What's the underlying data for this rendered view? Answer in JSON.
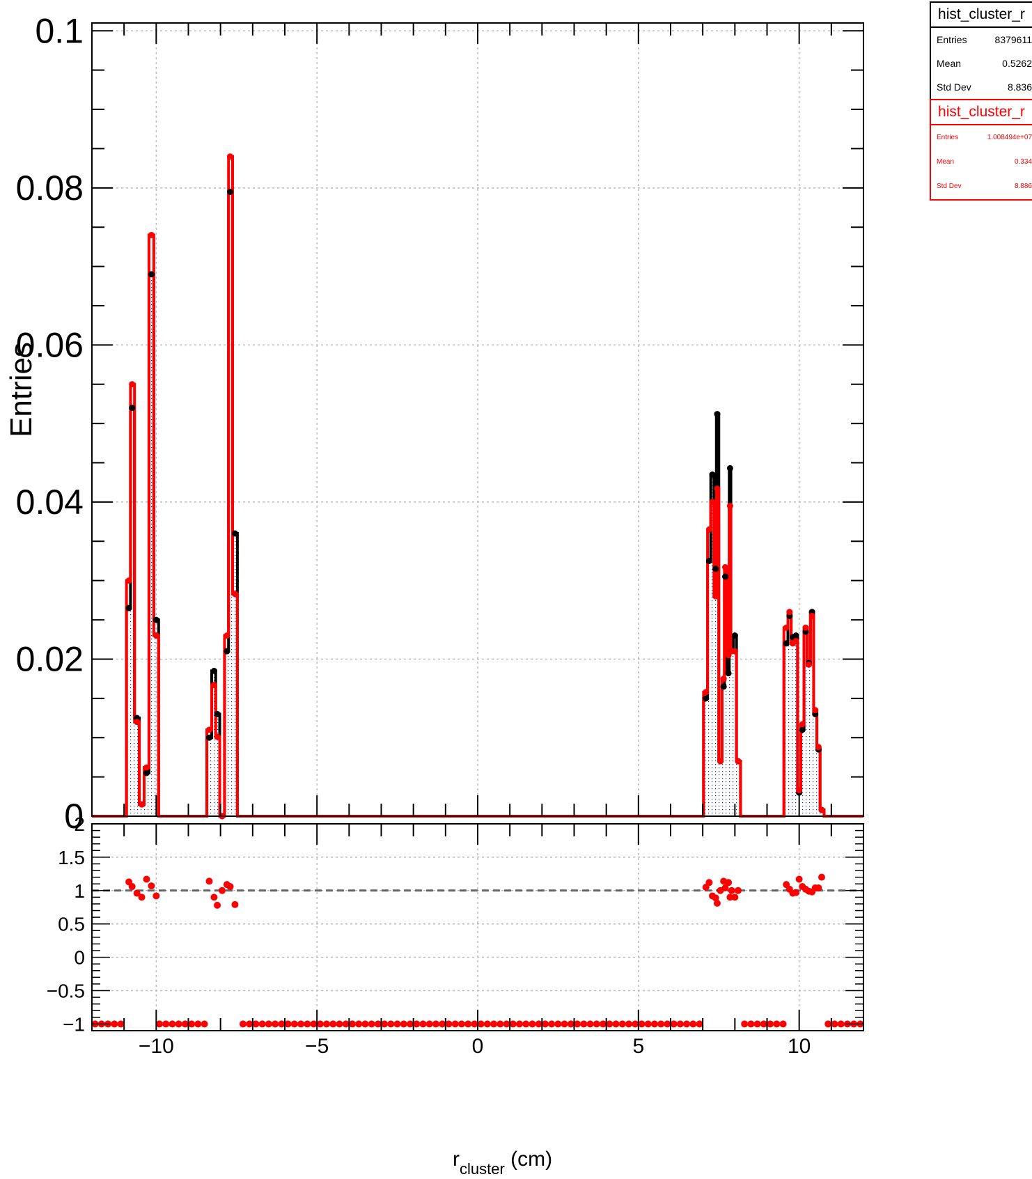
{
  "stats_boxes": [
    {
      "name": "hist_cluster_r",
      "entries_label": "Entries",
      "entries": "8379611",
      "mean_label": "Mean",
      "mean": "0.5262",
      "stddev_label": "Std Dev",
      "stddev": "8.836",
      "color": "#000000"
    },
    {
      "name": "hist_cluster_r",
      "entries_label": "Entries",
      "entries": "1.008494e+07",
      "mean_label": "Mean",
      "mean": "0.334",
      "stddev_label": "Std Dev",
      "stddev": "8.886",
      "color": "#ff0000"
    }
  ],
  "chart_data": [
    {
      "type": "line",
      "ylabel": "Entries",
      "xlim": [
        -12,
        12
      ],
      "ylim": [
        0,
        0.101
      ],
      "y_ticks": [
        "0",
        "0.02",
        "0.04",
        "0.06",
        "0.08",
        "0.1"
      ],
      "grid": true,
      "series": [
        {
          "name": "hist_cluster_r",
          "color": "#000000",
          "style": "step-filled-dotted",
          "x": [
            -10.85,
            -10.75,
            -10.6,
            -10.45,
            -10.3,
            -10.15,
            -10.0,
            -8.35,
            -8.2,
            -8.1,
            -7.95,
            -7.8,
            -7.7,
            -7.55,
            7.1,
            7.2,
            7.3,
            7.4,
            7.45,
            7.55,
            7.65,
            7.7,
            7.8,
            7.85,
            7.9,
            8.0,
            8.1,
            9.6,
            9.7,
            9.8,
            9.9,
            10.0,
            10.1,
            10.2,
            10.3,
            10.4,
            10.5,
            10.6,
            10.7
          ],
          "y": [
            0.0265,
            0.052,
            0.0125,
            0.0015,
            0.0055,
            0.069,
            0.025,
            0.01,
            0.0185,
            0.013,
            0.0,
            0.021,
            0.0795,
            0.036,
            0.015,
            0.0325,
            0.0435,
            0.0315,
            0.0512,
            0.007,
            0.0165,
            0.0305,
            0.0182,
            0.0443,
            0.021,
            0.023,
            0.007,
            0.022,
            0.0255,
            0.0228,
            0.023,
            0.003,
            0.011,
            0.0235,
            0.0195,
            0.026,
            0.013,
            0.0085,
            0.0008
          ]
        },
        {
          "name": "hist_cluster_r",
          "color": "#ff0000",
          "style": "step",
          "x": [
            -10.85,
            -10.75,
            -10.6,
            -10.45,
            -10.3,
            -10.15,
            -10.0,
            -8.35,
            -8.2,
            -8.1,
            -7.95,
            -7.8,
            -7.7,
            -7.55,
            7.1,
            7.2,
            7.3,
            7.4,
            7.45,
            7.55,
            7.65,
            7.7,
            7.8,
            7.85,
            7.9,
            8.0,
            8.1,
            9.6,
            9.7,
            9.8,
            9.9,
            10.0,
            10.1,
            10.2,
            10.3,
            10.4,
            10.5,
            10.6,
            10.7
          ],
          "y": [
            0.03,
            0.055,
            0.012,
            0.0015,
            0.0062,
            0.074,
            0.023,
            0.011,
            0.0167,
            0.0101,
            0.0,
            0.023,
            0.084,
            0.0283,
            0.0158,
            0.0365,
            0.04,
            0.028,
            0.0417,
            0.007,
            0.0175,
            0.0317,
            0.0205,
            0.0395,
            0.021,
            0.021,
            0.007,
            0.024,
            0.026,
            0.022,
            0.0223,
            0.0033,
            0.0117,
            0.024,
            0.0193,
            0.0255,
            0.0135,
            0.0088,
            0.0008
          ]
        }
      ]
    },
    {
      "type": "scatter",
      "xlabel": "r_cluster (cm)",
      "xlim": [
        -12,
        12
      ],
      "ylim": [
        -1.1,
        2.0
      ],
      "x_ticks": [
        "−10",
        "−5",
        "0",
        "5",
        "10"
      ],
      "y_ticks": [
        "−1",
        "−0.5",
        "0",
        "0.5",
        "1",
        "1.5",
        "2"
      ],
      "reference_line": 1,
      "series": [
        {
          "name": "ratio",
          "color": "#ff0000",
          "x": [
            -10.85,
            -10.75,
            -10.6,
            -10.45,
            -10.3,
            -10.15,
            -10.0,
            -8.35,
            -8.2,
            -8.1,
            -7.95,
            -7.8,
            -7.7,
            -7.55,
            7.1,
            7.2,
            7.3,
            7.4,
            7.45,
            7.55,
            7.65,
            7.7,
            7.8,
            7.85,
            7.9,
            8.0,
            8.1,
            9.6,
            9.7,
            9.8,
            9.9,
            10.0,
            10.1,
            10.2,
            10.3,
            10.4,
            10.5,
            10.6,
            10.7
          ],
          "y": [
            1.13,
            1.06,
            0.96,
            0.9,
            1.17,
            1.07,
            0.92,
            1.14,
            0.9,
            0.78,
            1.0,
            1.09,
            1.06,
            0.79,
            1.05,
            1.12,
            0.92,
            0.89,
            0.81,
            1.0,
            1.14,
            1.04,
            1.12,
            0.9,
            1.0,
            0.9,
            1.0,
            1.09,
            1.02,
            0.96,
            0.97,
            1.17,
            1.06,
            1.02,
            0.99,
            0.98,
            1.04,
            1.04,
            1.2
          ]
        },
        {
          "name": "empty_bins",
          "color": "#ff0000",
          "value": -1,
          "points_per_unit": 5
        }
      ]
    }
  ]
}
